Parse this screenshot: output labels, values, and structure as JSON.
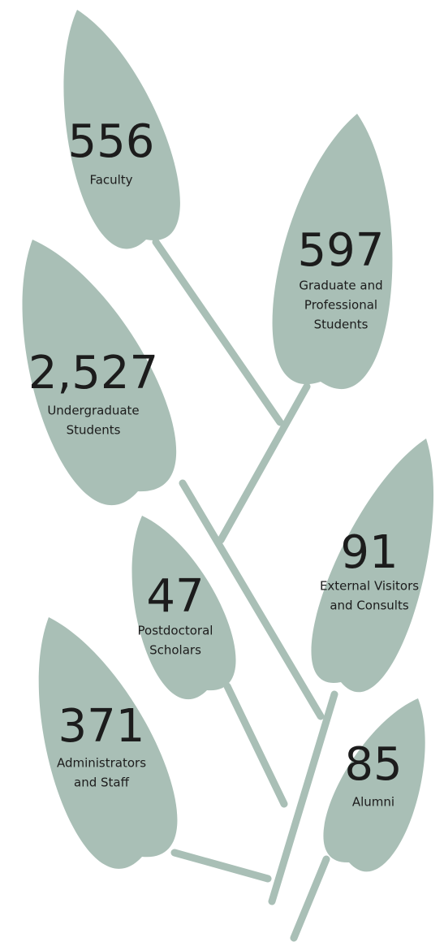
{
  "leaves": [
    {
      "value": "556",
      "label": [
        "Faculty"
      ]
    },
    {
      "value": "597",
      "label": [
        "Graduate and",
        "Professional",
        "Students"
      ]
    },
    {
      "value": "2,527",
      "label": [
        "Undergraduate",
        "Students"
      ]
    },
    {
      "value": "47",
      "label": [
        "Postdoctoral",
        "Scholars"
      ]
    },
    {
      "value": "91",
      "label": [
        "External Visitors",
        "and Consults"
      ]
    },
    {
      "value": "371",
      "label": [
        "Administrators",
        "and Staff"
      ]
    },
    {
      "value": "85",
      "label": [
        "Alumni"
      ]
    }
  ]
}
